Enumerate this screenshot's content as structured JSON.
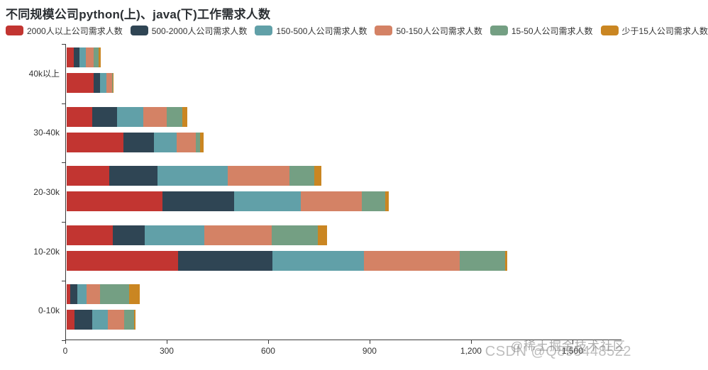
{
  "chart_data": {
    "type": "bar",
    "orientation": "horizontal-stacked",
    "title": "不同规模公司python(上)、java(下)工作需求人数",
    "categories": [
      "40k以上",
      "30-40k",
      "20-30k",
      "10-20k",
      "0-10k"
    ],
    "groups": [
      "python",
      "java"
    ],
    "group_note": "python is the upper bar, java is the lower bar of each category",
    "series": [
      {
        "name": "2000人以上公司需求人数",
        "color": "#c23531",
        "python": [
          20,
          75,
          126,
          136,
          10
        ],
        "java": [
          80,
          168,
          283,
          330,
          23
        ]
      },
      {
        "name": "500-2000人公司需求人数",
        "color": "#2f4554",
        "python": [
          17,
          75,
          142,
          94,
          21
        ],
        "java": [
          19,
          90,
          212,
          278,
          52
        ]
      },
      {
        "name": "150-500人公司需求人数",
        "color": "#61a0a8",
        "python": [
          19,
          77,
          209,
          178,
          27
        ],
        "java": [
          19,
          67,
          197,
          272,
          46
        ]
      },
      {
        "name": "50-150人公司需求人数",
        "color": "#d48265",
        "python": [
          23,
          69,
          182,
          199,
          40
        ],
        "java": [
          16,
          57,
          180,
          283,
          48
        ]
      },
      {
        "name": "15-50人公司需求人数",
        "color": "#749f83",
        "python": [
          15,
          46,
          73,
          136,
          86
        ],
        "java": [
          3,
          13,
          71,
          134,
          31
        ]
      },
      {
        "name": "少于15人公司需求人数",
        "color": "#ca8622",
        "python": [
          6,
          15,
          21,
          27,
          33
        ],
        "java": [
          2,
          10,
          10,
          6,
          4
        ]
      }
    ],
    "xaxis": {
      "max": 1645,
      "ticks": [
        {
          "value": 0,
          "label": "0"
        },
        {
          "value": 300,
          "label": "300"
        },
        {
          "value": 600,
          "label": "600"
        },
        {
          "value": 900,
          "label": "900"
        },
        {
          "value": 1200,
          "label": "1,200"
        },
        {
          "value": 1500,
          "label": "1,500"
        }
      ]
    },
    "grid": false,
    "legend_position": "top",
    "axis_color": "#3a3a3a"
  },
  "watermarks": {
    "community": "@稀土掘金技术社区",
    "csdn": "CSDN @Q895448522"
  }
}
